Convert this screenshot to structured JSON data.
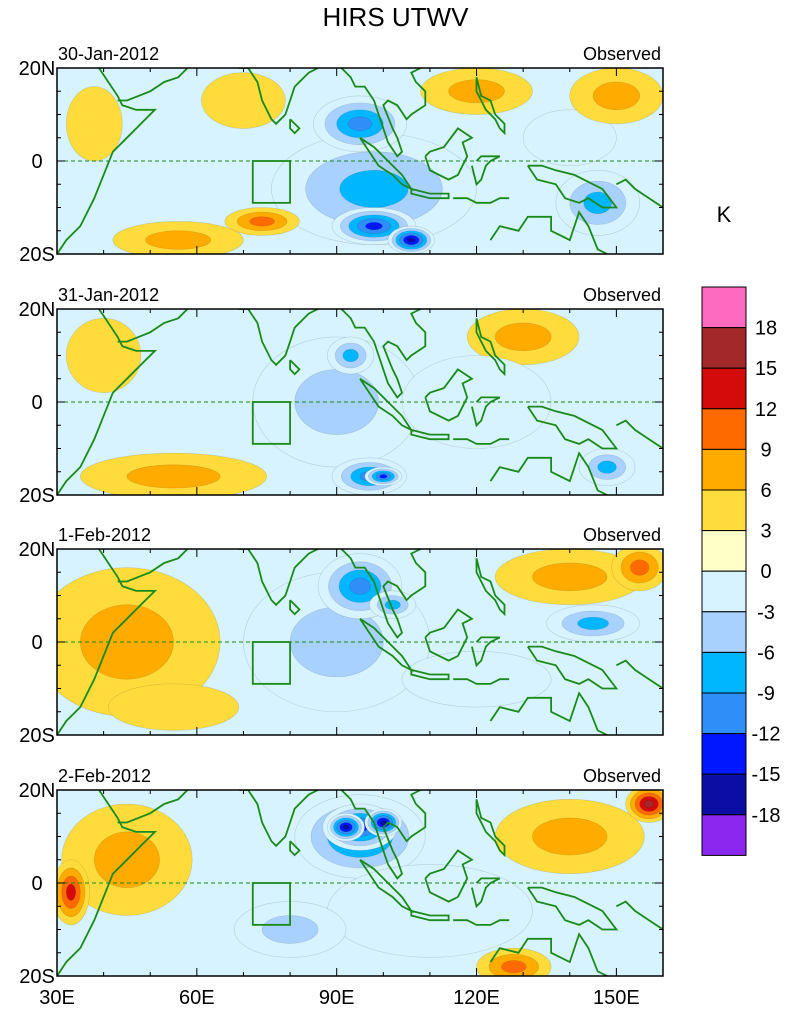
{
  "title": "HIRS UTWV",
  "units": "K",
  "chart_data": {
    "type": "heatmap",
    "title": "HIRS UTWV",
    "units": "K",
    "lon_range": [
      30,
      160
    ],
    "lat_range": [
      -20,
      20
    ],
    "x_ticks": [
      {
        "value": 30,
        "label": "30E"
      },
      {
        "value": 60,
        "label": "60E"
      },
      {
        "value": 90,
        "label": "90E"
      },
      {
        "value": 120,
        "label": "120E"
      },
      {
        "value": 150,
        "label": "150E"
      }
    ],
    "y_ticks": [
      {
        "value": 20,
        "label": "20N"
      },
      {
        "value": 0,
        "label": "0"
      },
      {
        "value": -20,
        "label": "20S"
      }
    ],
    "colorbar": {
      "levels": [
        "18",
        "15",
        "12",
        "9",
        "6",
        "3",
        "0",
        "-3",
        "-6",
        "-9",
        "-12",
        "-15",
        "-18"
      ],
      "colors": [
        "#ff6ac1",
        "#a3282a",
        "#d40a0b",
        "#ff6a00",
        "#ffab00",
        "#ffdc3c",
        "#ffffc8",
        "#d7f3ff",
        "#a9d1ff",
        "#00b7ff",
        "#2f8ef7",
        "#0018ff",
        "#0a0ea5",
        "#8c27f0"
      ]
    },
    "panels": [
      {
        "date": "30-Jan-2012",
        "label": "Observed",
        "features": [
          {
            "lon": 98,
            "lat": -6,
            "sx": 22,
            "sy": 12,
            "value": -9
          },
          {
            "lon": 95,
            "lat": 8,
            "sx": 10,
            "sy": 6,
            "value": -12
          },
          {
            "lon": 98,
            "lat": -14,
            "sx": 9,
            "sy": 4,
            "value": -15
          },
          {
            "lon": 106,
            "lat": -17,
            "sx": 5,
            "sy": 3,
            "value": -18
          },
          {
            "lon": 74,
            "lat": -13,
            "sx": 8,
            "sy": 3,
            "value": 9
          },
          {
            "lon": 56,
            "lat": -17,
            "sx": 14,
            "sy": 4,
            "value": 6
          },
          {
            "lon": 38,
            "lat": 8,
            "sx": 6,
            "sy": 8,
            "value": 3
          },
          {
            "lon": 70,
            "lat": 13,
            "sx": 9,
            "sy": 6,
            "value": 3
          },
          {
            "lon": 146,
            "lat": -9,
            "sx": 9,
            "sy": 7,
            "value": -9
          },
          {
            "lon": 140,
            "lat": 5,
            "sx": 10,
            "sy": 6,
            "value": -3
          },
          {
            "lon": 150,
            "lat": 14,
            "sx": 10,
            "sy": 6,
            "value": 6
          },
          {
            "lon": 120,
            "lat": 15,
            "sx": 12,
            "sy": 5,
            "value": 6
          }
        ]
      },
      {
        "date": "31-Jan-2012",
        "label": "Observed",
        "features": [
          {
            "lon": 90,
            "lat": 0,
            "sx": 18,
            "sy": 14,
            "value": -6
          },
          {
            "lon": 93,
            "lat": 10,
            "sx": 5,
            "sy": 4,
            "value": -9
          },
          {
            "lon": 97,
            "lat": -16,
            "sx": 8,
            "sy": 4,
            "value": -12
          },
          {
            "lon": 100,
            "lat": -16,
            "sx": 4,
            "sy": 2,
            "value": -15
          },
          {
            "lon": 55,
            "lat": -16,
            "sx": 20,
            "sy": 5,
            "value": 6
          },
          {
            "lon": 130,
            "lat": 14,
            "sx": 12,
            "sy": 6,
            "value": 6
          },
          {
            "lon": 148,
            "lat": -14,
            "sx": 6,
            "sy": 4,
            "value": -9
          },
          {
            "lon": 120,
            "lat": 0,
            "sx": 16,
            "sy": 10,
            "value": -3
          },
          {
            "lon": 40,
            "lat": 10,
            "sx": 8,
            "sy": 8,
            "value": 3
          }
        ]
      },
      {
        "date": "1-Feb-2012",
        "label": "Observed",
        "features": [
          {
            "lon": 90,
            "lat": 0,
            "sx": 20,
            "sy": 15,
            "value": -6
          },
          {
            "lon": 95,
            "lat": 12,
            "sx": 9,
            "sy": 7,
            "value": -12
          },
          {
            "lon": 102,
            "lat": 8,
            "sx": 5,
            "sy": 3,
            "value": -9
          },
          {
            "lon": 45,
            "lat": 0,
            "sx": 20,
            "sy": 16,
            "value": 6
          },
          {
            "lon": 55,
            "lat": -14,
            "sx": 14,
            "sy": 5,
            "value": 3
          },
          {
            "lon": 140,
            "lat": 14,
            "sx": 16,
            "sy": 6,
            "value": 6
          },
          {
            "lon": 155,
            "lat": 16,
            "sx": 6,
            "sy": 5,
            "value": 9
          },
          {
            "lon": 145,
            "lat": 4,
            "sx": 10,
            "sy": 4,
            "value": -9
          },
          {
            "lon": 120,
            "lat": -8,
            "sx": 16,
            "sy": 6,
            "value": -3
          }
        ]
      },
      {
        "date": "2-Feb-2012",
        "label": "Observed",
        "features": [
          {
            "lon": 95,
            "lat": 10,
            "sx": 14,
            "sy": 9,
            "value": -12
          },
          {
            "lon": 95,
            "lat": 12,
            "sx": 8,
            "sy": 5,
            "value": -15
          },
          {
            "lon": 92,
            "lat": 12,
            "sx": 4,
            "sy": 3,
            "value": -18
          },
          {
            "lon": 100,
            "lat": 13,
            "sx": 4,
            "sy": 3,
            "value": -18
          },
          {
            "lon": 45,
            "lat": 5,
            "sx": 14,
            "sy": 12,
            "value": 6
          },
          {
            "lon": 33,
            "lat": -2,
            "sx": 4,
            "sy": 7,
            "value": 12
          },
          {
            "lon": 128,
            "lat": -18,
            "sx": 8,
            "sy": 4,
            "value": 9
          },
          {
            "lon": 140,
            "lat": 10,
            "sx": 16,
            "sy": 8,
            "value": 6
          },
          {
            "lon": 157,
            "lat": 17,
            "sx": 5,
            "sy": 4,
            "value": 15
          },
          {
            "lon": 110,
            "lat": -6,
            "sx": 22,
            "sy": 10,
            "value": -3
          },
          {
            "lon": 80,
            "lat": -10,
            "sx": 12,
            "sy": 6,
            "value": -6
          }
        ]
      }
    ]
  }
}
